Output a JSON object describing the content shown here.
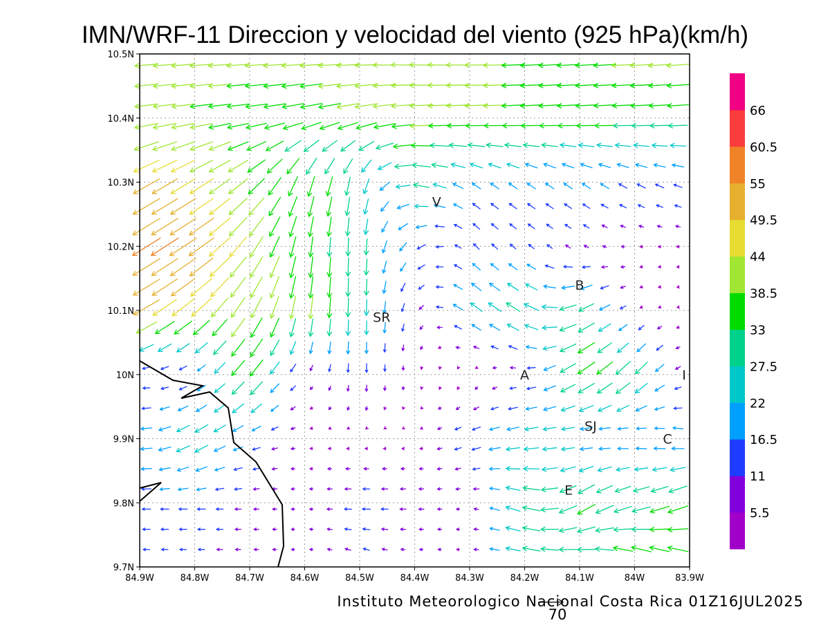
{
  "chart_data": {
    "type": "vector-map",
    "title": "IMN/WRF-11 Direccion y velocidad del viento (925 hPa)(km/h)",
    "footer": "Instituto Meteorologico Nacional Costa Rica 01Z16JUL2025",
    "reference_vector": {
      "value": 70,
      "label": "70"
    },
    "xlim": [
      -84.9,
      -83.9
    ],
    "ylim": [
      9.7,
      10.5
    ],
    "x_ticks": [
      "84.9W",
      "84.8W",
      "84.7W",
      "84.6W",
      "84.5W",
      "84.4W",
      "84.3W",
      "84.2W",
      "84.1W",
      "84W",
      "83.9W"
    ],
    "y_ticks": [
      "10.5N",
      "10.4N",
      "10.3N",
      "10.2N",
      "10.1N",
      "10N",
      "9.9N",
      "9.8N",
      "9.7N"
    ],
    "grid": true,
    "colorbar": {
      "labels": [
        "5.5",
        "11",
        "16.5",
        "22",
        "27.5",
        "33",
        "38.5",
        "44",
        "49.5",
        "55",
        "60.5",
        "66"
      ],
      "colors": [
        "#a000c8",
        "#8200dc",
        "#1e3cff",
        "#00a0ff",
        "#00c8c8",
        "#00d28c",
        "#00dc00",
        "#a0e632",
        "#e6dc32",
        "#e6af2d",
        "#f08228",
        "#fa3c3c",
        "#f00082"
      ],
      "placement": "right"
    },
    "towns": [
      {
        "label": "V",
        "lon": -84.36,
        "lat": 10.27
      },
      {
        "label": "B",
        "lon": -84.1,
        "lat": 10.14
      },
      {
        "label": "SR",
        "lon": -84.46,
        "lat": 10.09
      },
      {
        "label": "A",
        "lon": -84.2,
        "lat": 10.0
      },
      {
        "label": "I",
        "lon": -83.91,
        "lat": 10.0
      },
      {
        "label": "SJ",
        "lon": -84.08,
        "lat": 9.92
      },
      {
        "label": "C",
        "lon": -83.94,
        "lat": 9.9
      },
      {
        "label": "E",
        "lon": -84.12,
        "lat": 9.82
      }
    ],
    "wind_field": {
      "lats": [
        10.5,
        10.4,
        10.3,
        10.2,
        10.1,
        10.0,
        9.9,
        9.8,
        9.7
      ],
      "lons": [
        -84.9,
        -84.8,
        -84.7,
        -84.6,
        -84.5,
        -84.4,
        -84.3,
        -84.2,
        -84.1,
        -84.0,
        -83.9
      ],
      "u": [
        [
          -40,
          -40,
          -40,
          -40,
          -40,
          -42,
          -40,
          -38,
          -38,
          -40,
          -40
        ],
        [
          -40,
          -38,
          -36,
          -36,
          -38,
          -40,
          -40,
          -38,
          -36,
          -35,
          -35
        ],
        [
          -45,
          -40,
          -30,
          -12,
          -6,
          -30,
          -15,
          -15,
          -15,
          -15,
          -15
        ],
        [
          -48,
          -45,
          -25,
          -5,
          0,
          -15,
          -10,
          -10,
          -8,
          -5,
          -5
        ],
        [
          -45,
          -35,
          -20,
          -5,
          0,
          -5,
          -20,
          -25,
          -30,
          -5,
          -3
        ],
        [
          -10,
          -10,
          -25,
          -5,
          0,
          0,
          0,
          -10,
          -30,
          -25,
          -5
        ],
        [
          -20,
          -25,
          -15,
          -5,
          -3,
          -3,
          -15,
          -25,
          -20,
          -15,
          -20
        ],
        [
          -15,
          -15,
          -10,
          -5,
          -15,
          -10,
          -5,
          -30,
          -30,
          -30,
          -35
        ],
        [
          -10,
          -10,
          -8,
          -5,
          -10,
          -5,
          -5,
          -30,
          -30,
          -35,
          -35
        ]
      ],
      "v": [
        [
          -3,
          -3,
          -2,
          -2,
          0,
          2,
          0,
          -2,
          -2,
          -2,
          -3
        ],
        [
          -5,
          -5,
          -5,
          -8,
          -8,
          -3,
          -2,
          -2,
          -2,
          -2,
          -2
        ],
        [
          -25,
          -25,
          -25,
          -35,
          -30,
          5,
          10,
          10,
          10,
          8,
          5
        ],
        [
          -30,
          -30,
          -35,
          -35,
          -30,
          -10,
          10,
          8,
          5,
          0,
          0
        ],
        [
          -25,
          -30,
          -35,
          -40,
          -30,
          -10,
          15,
          15,
          -15,
          -3,
          0
        ],
        [
          0,
          -5,
          -30,
          -5,
          -15,
          -5,
          -5,
          0,
          -20,
          -25,
          0
        ],
        [
          0,
          -15,
          -5,
          0,
          0,
          0,
          -5,
          -5,
          0,
          3,
          3
        ],
        [
          0,
          0,
          0,
          0,
          0,
          0,
          0,
          10,
          -20,
          -10,
          -15
        ],
        [
          0,
          0,
          0,
          0,
          5,
          0,
          0,
          5,
          5,
          15,
          15
        ]
      ]
    }
  }
}
